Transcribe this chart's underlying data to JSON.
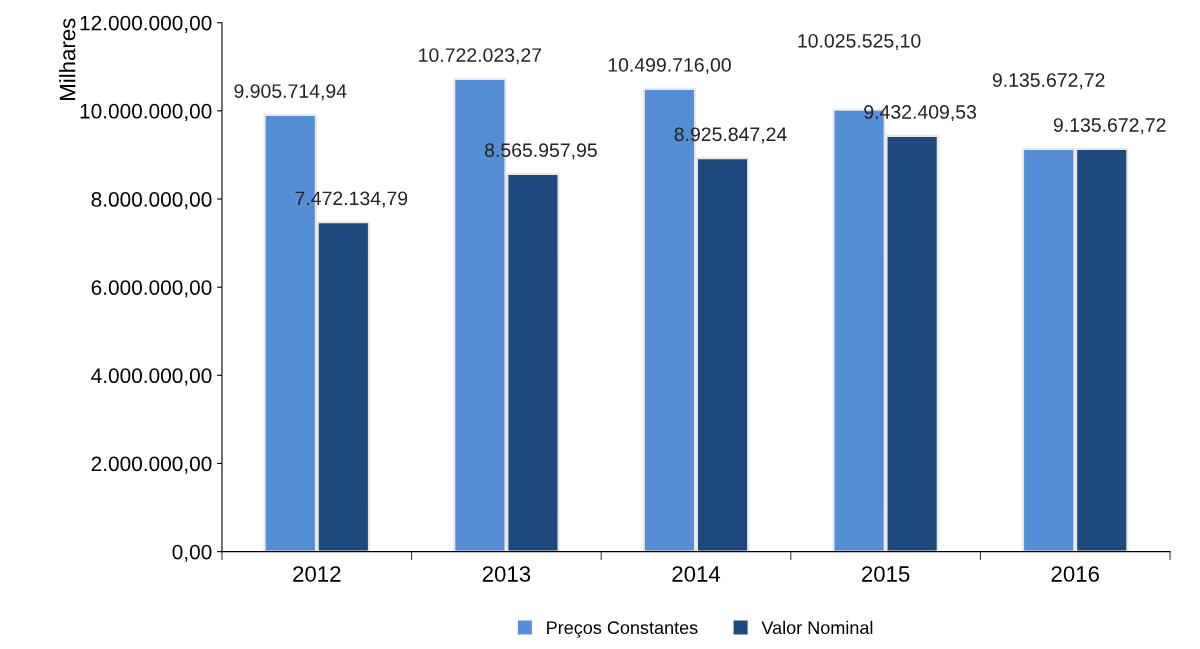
{
  "chart_data": {
    "type": "bar",
    "ylabel": "Milhares",
    "categories": [
      "2012",
      "2013",
      "2014",
      "2015",
      "2016"
    ],
    "series": [
      {
        "name": "Preços Constantes",
        "color": "#558ed5",
        "values": [
          9905714.94,
          10722023.27,
          10499716.0,
          10025525.1,
          9135672.72
        ],
        "value_labels": [
          "9.905.714,94",
          "10.722.023,27",
          "10.499.716,00",
          "10.025.525,10",
          "9.135.672,72"
        ]
      },
      {
        "name": "Valor Nominal",
        "color": "#1f497d",
        "values": [
          7472134.79,
          8565957.95,
          8925847.24,
          9432409.53,
          9135672.72
        ],
        "value_labels": [
          "7.472.134,79",
          "8.565.957,95",
          "8.925.847,24",
          "9.432.409,53",
          "9.135.672,72"
        ]
      }
    ],
    "ylim": [
      0,
      12000000
    ],
    "yticks": [
      {
        "value": 0,
        "label": "0,00"
      },
      {
        "value": 2000000,
        "label": "2.000.000,00"
      },
      {
        "value": 4000000,
        "label": "4.000.000,00"
      },
      {
        "value": 6000000,
        "label": "6.000.000,00"
      },
      {
        "value": 8000000,
        "label": "8.000.000,00"
      },
      {
        "value": 10000000,
        "label": "10.000.000,00"
      },
      {
        "value": 12000000,
        "label": "12.000.000,00"
      }
    ],
    "grid": false,
    "legend": "bottom"
  }
}
